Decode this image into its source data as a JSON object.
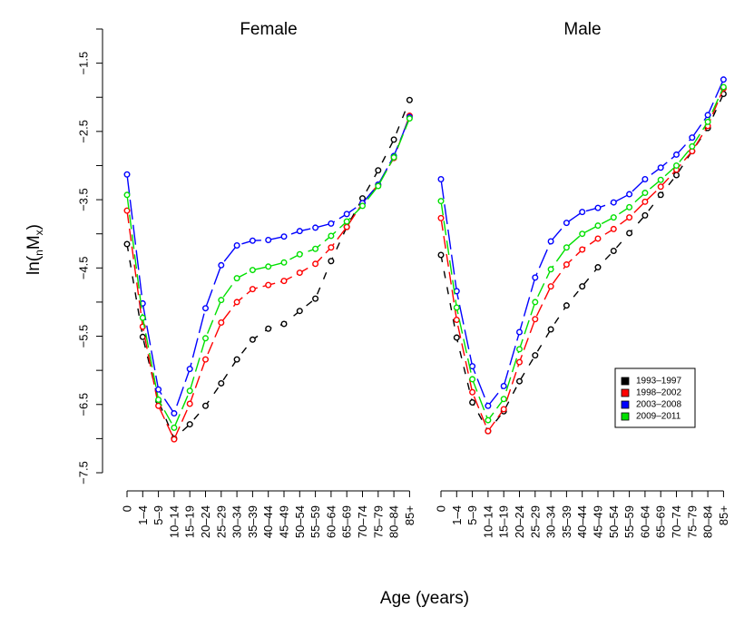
{
  "chart_data": {
    "type": "line",
    "xlabel": "Age (years)",
    "ylabel_main": "ln(",
    "ylabel_sub_n": "n",
    "ylabel_M": "M",
    "ylabel_sub_x": "x",
    "ylabel_close": ")",
    "ylim": [
      -7.5,
      -1
    ],
    "y_ticks": [
      -7.5,
      -6.5,
      -5.5,
      -4.5,
      -3.5,
      -2.5,
      -1.5
    ],
    "y_tick_labels": [
      "−7.5",
      "−6.5",
      "−5.5",
      "−4.5",
      "−3.5",
      "−2.5",
      "−1.5"
    ],
    "categories": [
      "0",
      "1–4",
      "5–9",
      "10–14",
      "15–19",
      "20–24",
      "25–29",
      "30–34",
      "35–39",
      "40–44",
      "45–49",
      "50–54",
      "55–59",
      "60–64",
      "65–69",
      "70–74",
      "75–79",
      "80–84",
      "85+"
    ],
    "colors": {
      "1993–1997": "#000000",
      "1998–2002": "#ff0000",
      "2003–2008": "#0000ff",
      "2009–2011": "#00e000"
    },
    "legend": {
      "position": "right-bottom",
      "entries": [
        "1993–1997",
        "1998–2002",
        "2003–2008",
        "2009–2011"
      ]
    },
    "panels": [
      {
        "title": "Female",
        "series": [
          {
            "name": "1993–1997",
            "values": [
              -4.15,
              -5.51,
              -6.45,
              -7.0,
              -6.79,
              -6.52,
              -6.19,
              -5.84,
              -5.55,
              -5.39,
              -5.32,
              -5.13,
              -4.95,
              -4.4,
              -3.9,
              -3.48,
              -3.07,
              -2.62,
              -2.04
            ]
          },
          {
            "name": "1998–2002",
            "values": [
              -3.66,
              -5.36,
              -6.52,
              -7.01,
              -6.49,
              -5.84,
              -5.3,
              -5.0,
              -4.81,
              -4.75,
              -4.69,
              -4.57,
              -4.44,
              -4.2,
              -3.9,
              -3.55,
              -3.28,
              -2.89,
              -2.27
            ]
          },
          {
            "name": "2003–2008",
            "values": [
              -3.13,
              -5.02,
              -6.28,
              -6.63,
              -5.98,
              -5.09,
              -4.46,
              -4.17,
              -4.1,
              -4.09,
              -4.04,
              -3.96,
              -3.91,
              -3.85,
              -3.71,
              -3.55,
              -3.28,
              -2.86,
              -2.29
            ]
          },
          {
            "name": "2009–2011",
            "values": [
              -3.43,
              -5.23,
              -6.43,
              -6.84,
              -6.3,
              -5.53,
              -4.97,
              -4.65,
              -4.53,
              -4.48,
              -4.42,
              -4.3,
              -4.22,
              -4.03,
              -3.82,
              -3.59,
              -3.3,
              -2.88,
              -2.31
            ]
          }
        ]
      },
      {
        "title": "Male",
        "series": [
          {
            "name": "1993–1997",
            "values": [
              -4.31,
              -5.52,
              -6.47,
              -6.89,
              -6.6,
              -6.16,
              -5.78,
              -5.4,
              -5.05,
              -4.77,
              -4.49,
              -4.25,
              -3.99,
              -3.73,
              -3.43,
              -3.14,
              -2.79,
              -2.45,
              -1.95
            ]
          },
          {
            "name": "1998–2002",
            "values": [
              -3.77,
              -5.26,
              -6.32,
              -6.89,
              -6.57,
              -5.88,
              -5.25,
              -4.77,
              -4.45,
              -4.23,
              -4.07,
              -3.93,
              -3.76,
              -3.53,
              -3.31,
              -3.06,
              -2.79,
              -2.42,
              -1.87
            ]
          },
          {
            "name": "2003–2008",
            "values": [
              -3.2,
              -4.84,
              -5.94,
              -6.52,
              -6.23,
              -5.44,
              -4.64,
              -4.11,
              -3.84,
              -3.68,
              -3.62,
              -3.54,
              -3.42,
              -3.2,
              -3.03,
              -2.84,
              -2.59,
              -2.26,
              -1.74
            ]
          },
          {
            "name": "2009–2011",
            "values": [
              -3.52,
              -5.08,
              -6.13,
              -6.73,
              -6.42,
              -5.69,
              -5.0,
              -4.52,
              -4.2,
              -4.0,
              -3.88,
              -3.76,
              -3.61,
              -3.4,
              -3.21,
              -3.0,
              -2.72,
              -2.36,
              -1.85
            ]
          }
        ]
      }
    ]
  }
}
